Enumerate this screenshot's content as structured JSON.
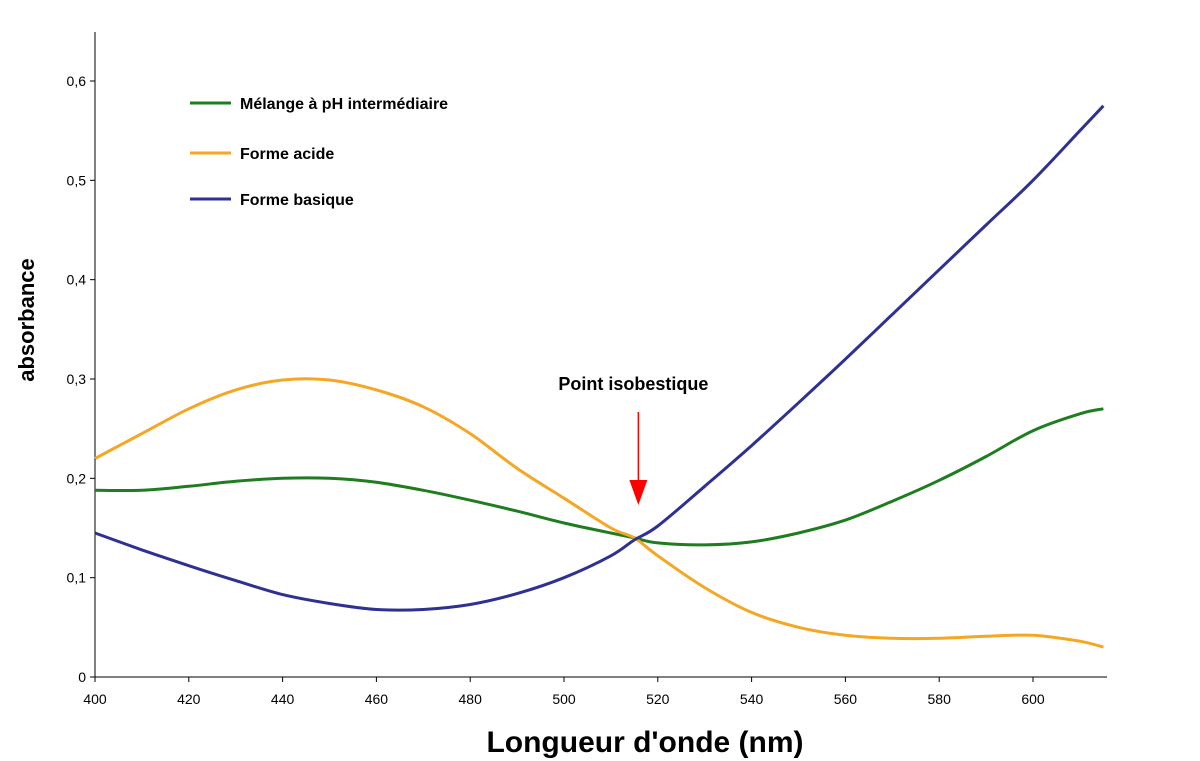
{
  "chart_data": {
    "type": "line",
    "title": "",
    "xlabel": "Longueur d'onde (nm)",
    "ylabel": "absorbance",
    "xlim": [
      400,
      615
    ],
    "ylim": [
      0,
      0.65
    ],
    "grid": false,
    "legend_position": "top-left",
    "x_ticks": [
      400,
      420,
      440,
      460,
      480,
      500,
      520,
      540,
      560,
      580,
      600
    ],
    "x_tick_labels": [
      "400",
      "420",
      "440",
      "460",
      "480",
      "500",
      "520",
      "540",
      "560",
      "580",
      "600"
    ],
    "y_ticks": [
      0,
      0.1,
      0.2,
      0.3,
      0.4,
      0.5,
      0.6
    ],
    "y_tick_labels": [
      "0",
      "0,1",
      "0,2",
      "0,3",
      "0,4",
      "0,5",
      "0,6"
    ],
    "series": [
      {
        "name": "Mélange à pH intermédiaire",
        "color": "#1e7d1e",
        "x": [
          400,
          410,
          420,
          430,
          440,
          450,
          460,
          470,
          480,
          490,
          500,
          510,
          515,
          520,
          530,
          540,
          550,
          560,
          570,
          580,
          590,
          600,
          610,
          615
        ],
        "y": [
          0.188,
          0.188,
          0.192,
          0.197,
          0.2,
          0.2,
          0.196,
          0.188,
          0.178,
          0.167,
          0.155,
          0.145,
          0.14,
          0.135,
          0.133,
          0.136,
          0.145,
          0.158,
          0.177,
          0.198,
          0.222,
          0.248,
          0.265,
          0.27
        ]
      },
      {
        "name": "Forme acide",
        "color": "#f5a623",
        "x": [
          400,
          410,
          420,
          430,
          440,
          450,
          460,
          470,
          480,
          490,
          500,
          510,
          515,
          520,
          530,
          540,
          550,
          560,
          570,
          580,
          590,
          600,
          610,
          615
        ],
        "y": [
          0.22,
          0.245,
          0.27,
          0.289,
          0.299,
          0.299,
          0.289,
          0.272,
          0.245,
          0.21,
          0.18,
          0.15,
          0.14,
          0.122,
          0.09,
          0.065,
          0.05,
          0.042,
          0.039,
          0.039,
          0.041,
          0.042,
          0.036,
          0.03
        ]
      },
      {
        "name": "Forme basique",
        "color": "#2e3192",
        "x": [
          400,
          410,
          420,
          430,
          440,
          450,
          460,
          470,
          480,
          490,
          500,
          510,
          515,
          520,
          530,
          540,
          550,
          560,
          570,
          580,
          590,
          600,
          610,
          615
        ],
        "y": [
          0.145,
          0.128,
          0.112,
          0.097,
          0.083,
          0.074,
          0.068,
          0.068,
          0.073,
          0.084,
          0.1,
          0.122,
          0.138,
          0.152,
          0.192,
          0.233,
          0.276,
          0.32,
          0.365,
          0.41,
          0.455,
          0.5,
          0.55,
          0.575
        ]
      }
    ],
    "annotations": [
      {
        "text": "Point isobestique",
        "x": 515,
        "y": 0.14,
        "arrow_color": "#ff0000"
      }
    ]
  }
}
